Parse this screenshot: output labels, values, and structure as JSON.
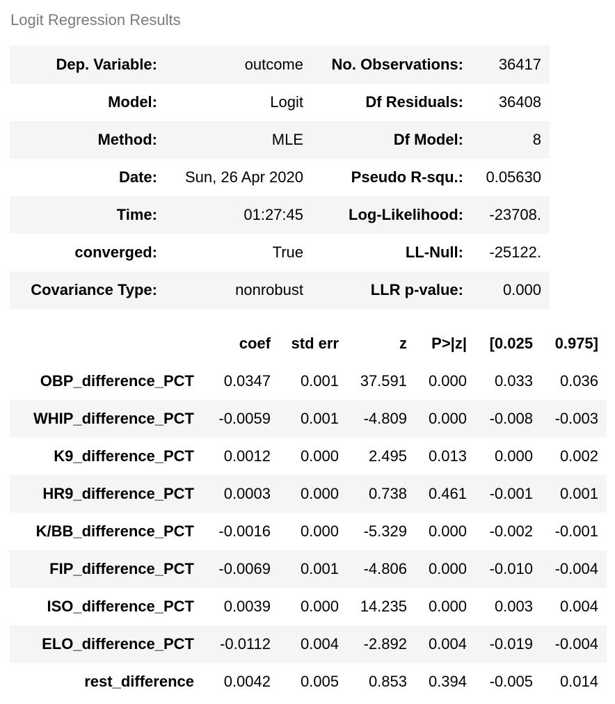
{
  "caption": "Logit Regression Results",
  "summary": [
    {
      "label1": "Dep. Variable:",
      "value1": "outcome",
      "label2": "No. Observations:",
      "value2": "36417"
    },
    {
      "label1": "Model:",
      "value1": "Logit",
      "label2": "Df Residuals:",
      "value2": "36408"
    },
    {
      "label1": "Method:",
      "value1": "MLE",
      "label2": "Df Model:",
      "value2": "8"
    },
    {
      "label1": "Date:",
      "value1": "Sun, 26 Apr 2020",
      "label2": "Pseudo R-squ.:",
      "value2": "0.05630"
    },
    {
      "label1": "Time:",
      "value1": "01:27:45",
      "label2": "Log-Likelihood:",
      "value2": "-23708."
    },
    {
      "label1": "converged:",
      "value1": "True",
      "label2": "LL-Null:",
      "value2": "-25122."
    },
    {
      "label1": "Covariance Type:",
      "value1": "nonrobust",
      "label2": "LLR p-value:",
      "value2": "0.000"
    }
  ],
  "coef_headers": [
    "",
    "coef",
    "std err",
    "z",
    "P>|z|",
    "[0.025",
    "0.975]"
  ],
  "coef_rows": [
    [
      "OBP_difference_PCT",
      "0.0347",
      "0.001",
      "37.591",
      "0.000",
      "0.033",
      "0.036"
    ],
    [
      "WHIP_difference_PCT",
      "-0.0059",
      "0.001",
      "-4.809",
      "0.000",
      "-0.008",
      "-0.003"
    ],
    [
      "K9_difference_PCT",
      "0.0012",
      "0.000",
      "2.495",
      "0.013",
      "0.000",
      "0.002"
    ],
    [
      "HR9_difference_PCT",
      "0.0003",
      "0.000",
      "0.738",
      "0.461",
      "-0.001",
      "0.001"
    ],
    [
      "K/BB_difference_PCT",
      "-0.0016",
      "0.000",
      "-5.329",
      "0.000",
      "-0.002",
      "-0.001"
    ],
    [
      "FIP_difference_PCT",
      "-0.0069",
      "0.001",
      "-4.806",
      "0.000",
      "-0.010",
      "-0.004"
    ],
    [
      "ISO_difference_PCT",
      "0.0039",
      "0.000",
      "14.235",
      "0.000",
      "0.003",
      "0.004"
    ],
    [
      "ELO_difference_PCT",
      "-0.0112",
      "0.004",
      "-2.892",
      "0.004",
      "-0.019",
      "-0.004"
    ],
    [
      "rest_difference",
      "0.0042",
      "0.005",
      "0.853",
      "0.394",
      "-0.005",
      "0.014"
    ]
  ]
}
